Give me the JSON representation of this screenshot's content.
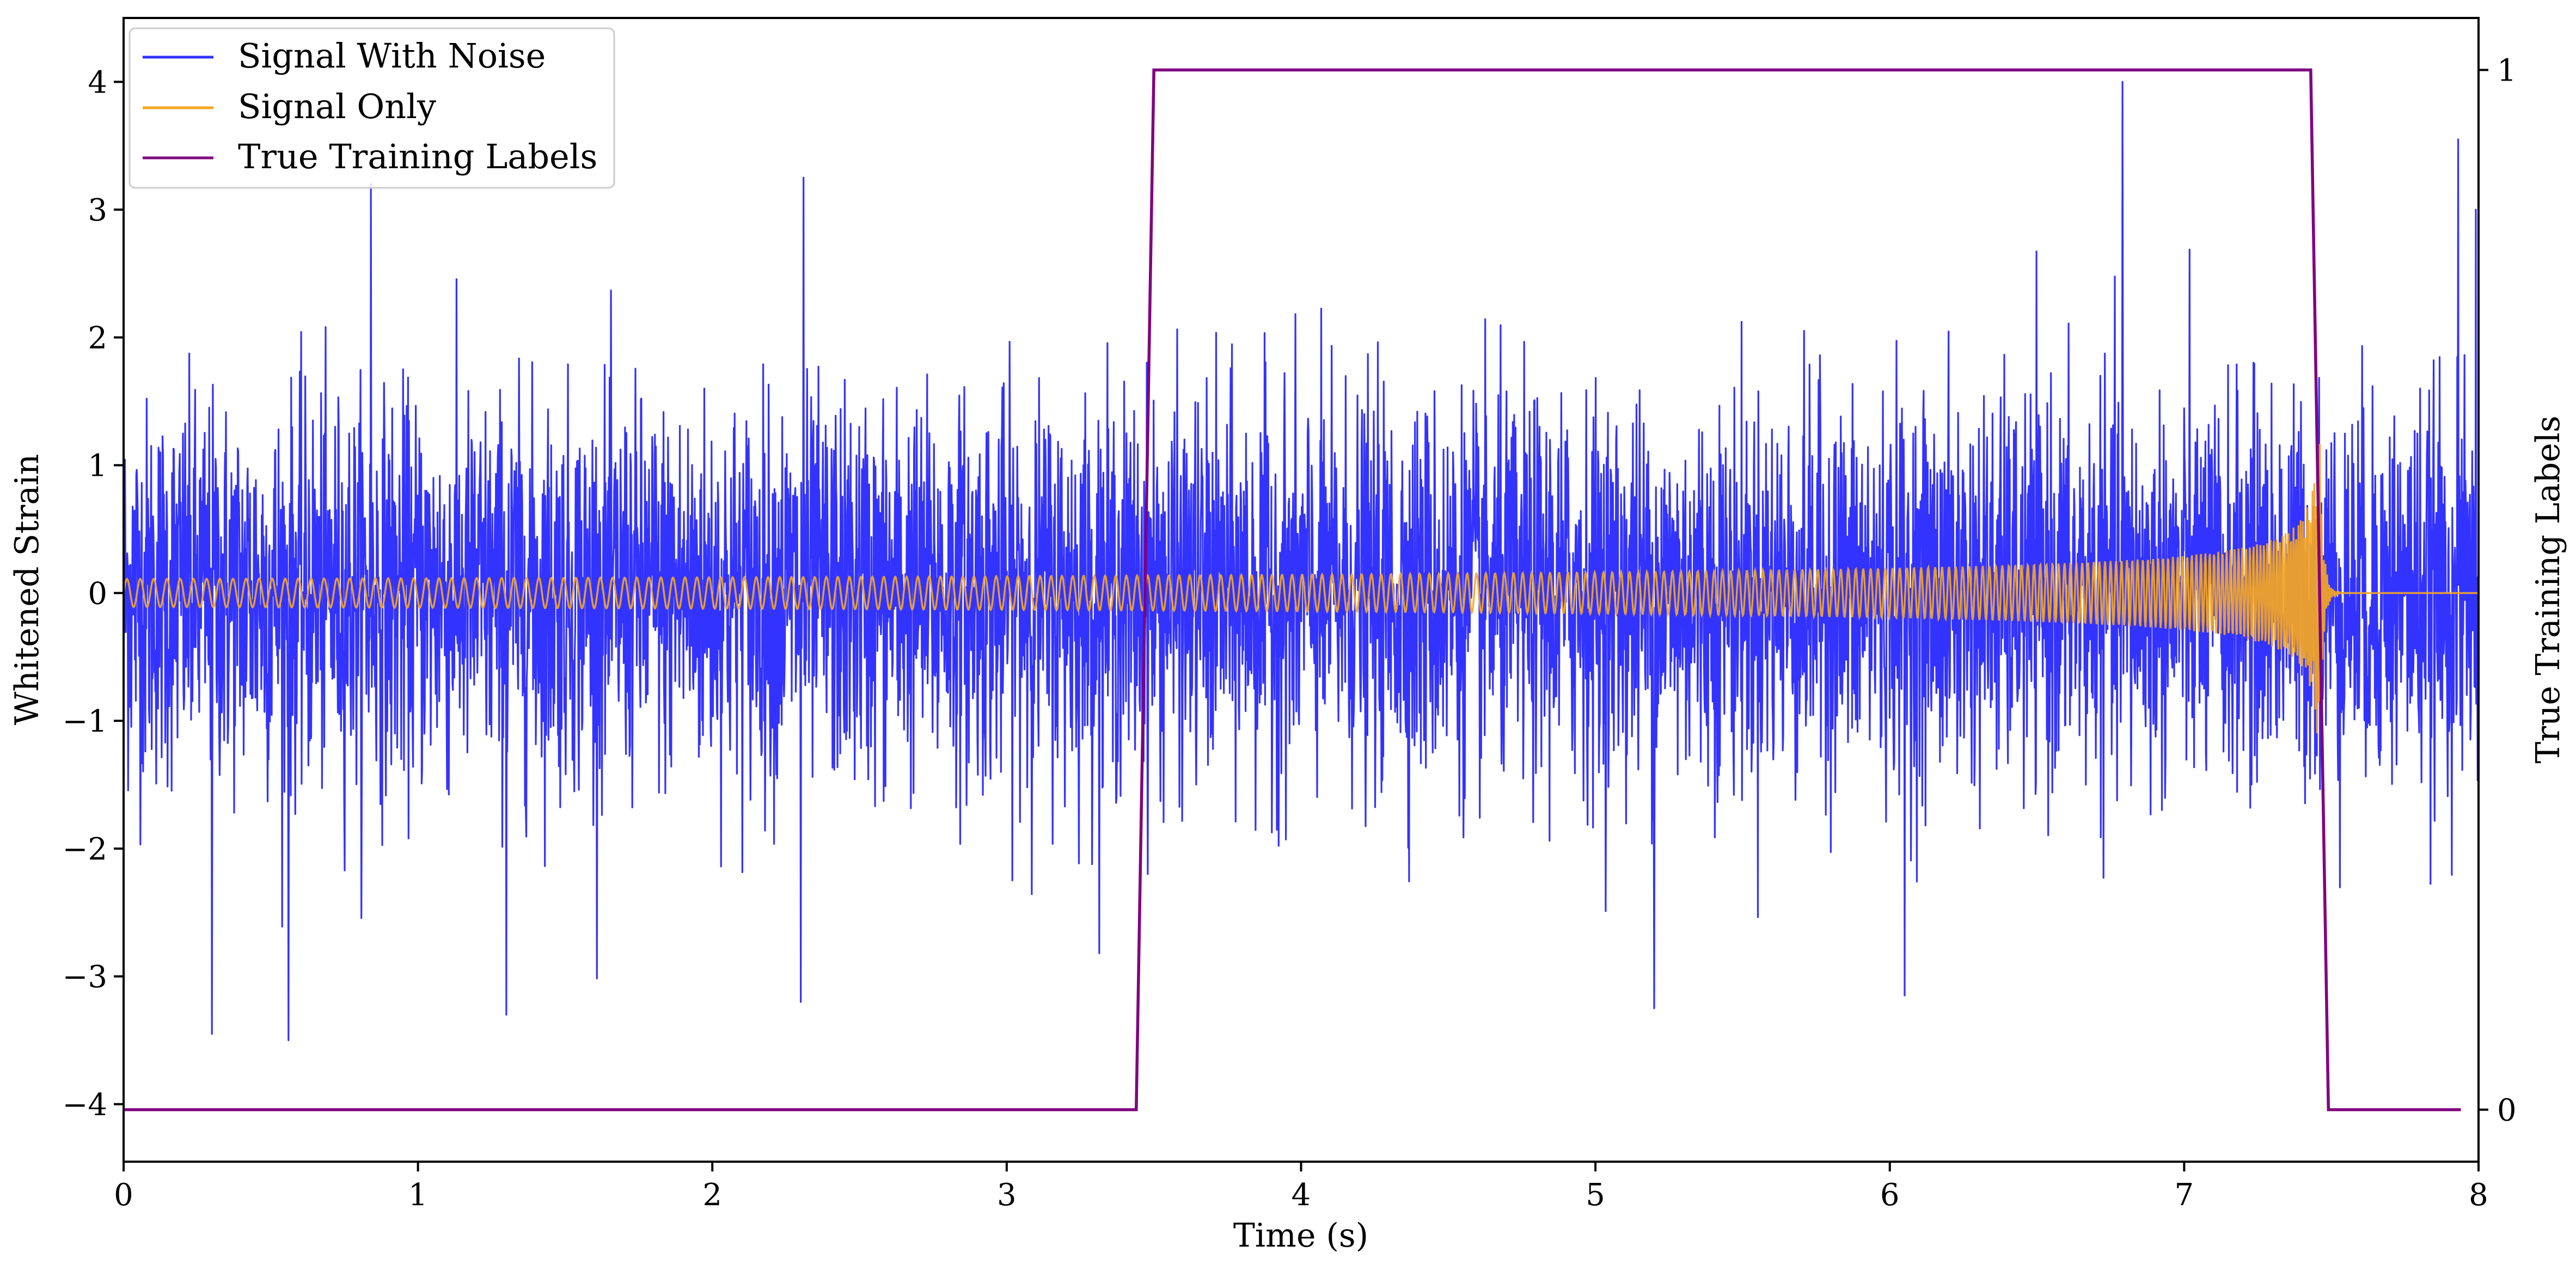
{
  "chart_data": {
    "type": "line",
    "title": "",
    "xlabel": "Time (s)",
    "ylabel": "Whitened Strain",
    "y2label": "True Training Labels",
    "xlim": [
      0,
      8
    ],
    "ylim": [
      -4.45,
      4.5
    ],
    "y2lim": [
      -0.05,
      1.05
    ],
    "x_ticks": [
      "0",
      "1",
      "2",
      "3",
      "4",
      "5",
      "6",
      "7",
      "8"
    ],
    "y_ticks": [
      "−4",
      "−3",
      "−2",
      "−1",
      "0",
      "1",
      "2",
      "3",
      "4"
    ],
    "y2_ticks": [
      "0",
      "1"
    ],
    "grid": false,
    "legend": "top-left",
    "series": [
      {
        "name": "Signal With Noise",
        "color": "#3333ff",
        "description_of_values": "dense noisy oscillation",
        "stats": {
          "std": 0.75,
          "min": -3.5,
          "max": 4.0
        },
        "spikes": [
          [
            0.3,
            -3.45
          ],
          [
            0.56,
            -3.5
          ],
          [
            0.84,
            3.2
          ],
          [
            1.3,
            -3.3
          ],
          [
            2.31,
            3.25
          ],
          [
            2.3,
            -3.2
          ],
          [
            6.79,
            4.0
          ],
          [
            7.93,
            3.55
          ],
          [
            5.2,
            -3.25
          ],
          [
            6.05,
            -3.15
          ],
          [
            7.99,
            3.0
          ]
        ]
      },
      {
        "name": "Signal Only",
        "color": "#f5a623",
        "description_of_values": "chirp with growing amplitude ending at merger near t=7.46 s",
        "chirp": {
          "t_start": 0.0,
          "t_merge": 7.46,
          "t_end": 8.0,
          "amp_start": 0.11,
          "amp_peak": 1.25,
          "freq_start_hz": 22
        }
      },
      {
        "name": "True Training Labels",
        "color": "#800080",
        "axis": "right",
        "x": [
          0.0,
          3.44,
          3.5,
          7.43,
          7.49,
          7.94
        ],
        "values": [
          0,
          0,
          1,
          1,
          0,
          0
        ]
      }
    ]
  }
}
